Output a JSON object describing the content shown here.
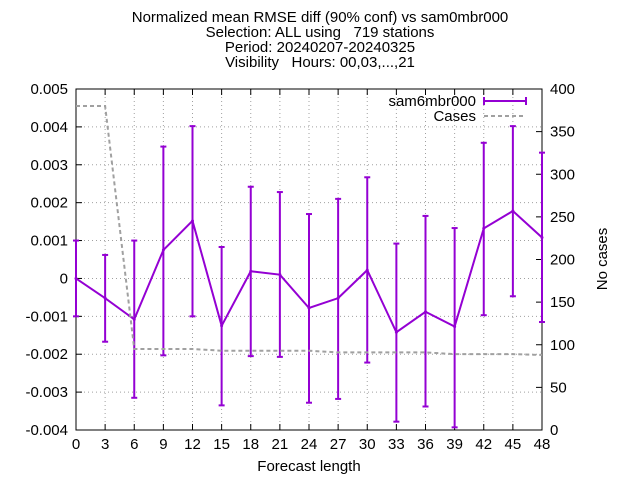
{
  "chart_data": {
    "type": "line",
    "title_lines": [
      "Normalized mean RMSE diff (90% conf) vs sam0mbr000",
      "Selection: ALL using   719 stations",
      "Period: 20240207-20240325",
      "Visibility   Hours: 00,03,...,21"
    ],
    "xlabel": "Forecast length",
    "ylabel": "",
    "y2label": "No cases",
    "x": [
      0,
      3,
      6,
      9,
      12,
      15,
      18,
      21,
      24,
      27,
      30,
      33,
      36,
      39,
      42,
      45,
      48
    ],
    "xticks": [
      "0",
      "3",
      "6",
      "9",
      "12",
      "15",
      "18",
      "21",
      "24",
      "27",
      "30",
      "33",
      "36",
      "39",
      "42",
      "45",
      "48"
    ],
    "yticks": [
      "0.005",
      "0.004",
      "0.003",
      "0.002",
      "0.001",
      "0",
      "-0.001",
      "-0.002",
      "-0.003",
      "-0.004"
    ],
    "y2ticks": [
      "400",
      "350",
      "300",
      "250",
      "200",
      "150",
      "100",
      "50",
      "0"
    ],
    "ylim": [
      -0.004,
      0.005
    ],
    "y2lim": [
      0,
      400
    ],
    "grid": true,
    "legend_position": "top-right",
    "series": [
      {
        "name": "sam6mbr000",
        "axis": "y1",
        "color": "#9400d3",
        "style": "line-errorbars",
        "values": [
          0.0,
          -0.00052,
          -0.00108,
          0.00075,
          0.00152,
          -0.00125,
          0.00019,
          0.0001,
          -0.00078,
          -0.00052,
          0.00022,
          -0.00142,
          -0.00088,
          -0.00127,
          0.00132,
          0.00178,
          0.00108
        ],
        "lower": [
          -0.001,
          -0.00167,
          -0.00315,
          -0.00203,
          -0.001,
          -0.00335,
          -0.00205,
          -0.00207,
          -0.00328,
          -0.00318,
          -0.00222,
          -0.00378,
          -0.00338,
          -0.00393,
          -0.00097,
          -0.00047,
          -0.00115
        ],
        "upper": [
          0.001,
          0.00062,
          0.001,
          0.00348,
          0.00402,
          0.00083,
          0.00242,
          0.00228,
          0.0017,
          0.0021,
          0.00267,
          0.00092,
          0.00165,
          0.00133,
          0.00358,
          0.00402,
          0.00332
        ]
      },
      {
        "name": "Cases",
        "axis": "y2",
        "color": "#a0a0a0",
        "style": "dashed",
        "values": [
          380,
          380,
          95,
          95,
          95,
          93,
          93,
          93,
          93,
          91,
          91,
          91,
          91,
          89,
          89,
          89,
          88
        ]
      }
    ]
  }
}
